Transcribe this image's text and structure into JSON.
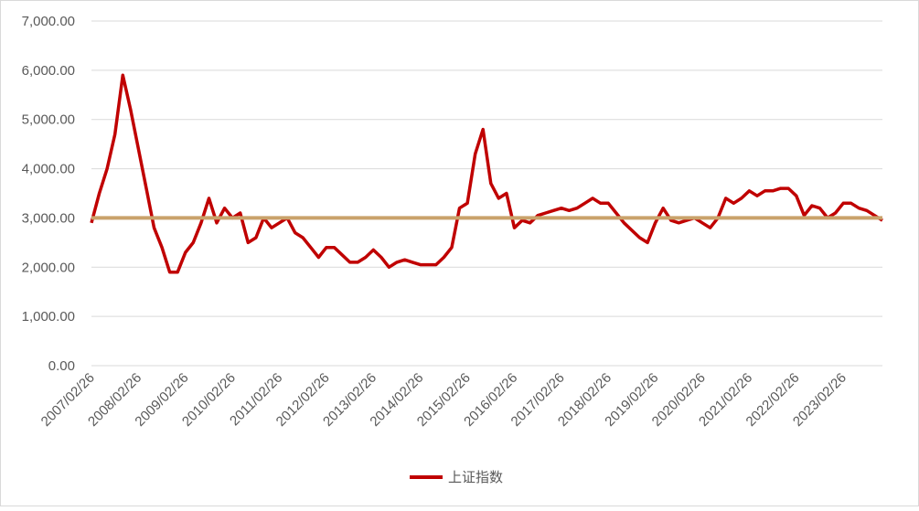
{
  "chart_data": {
    "type": "line",
    "categories": [
      "2007/02/26",
      null,
      null,
      null,
      null,
      null,
      "2008/02/26",
      null,
      null,
      null,
      null,
      null,
      "2009/02/26",
      null,
      null,
      null,
      null,
      null,
      "2010/02/26",
      null,
      null,
      null,
      null,
      null,
      "2011/02/26",
      null,
      null,
      null,
      null,
      null,
      "2012/02/26",
      null,
      null,
      null,
      null,
      null,
      "2013/02/26",
      null,
      null,
      null,
      null,
      null,
      "2014/02/26",
      null,
      null,
      null,
      null,
      null,
      "2015/02/26",
      null,
      null,
      null,
      null,
      null,
      "2016/02/26",
      null,
      null,
      null,
      null,
      null,
      "2017/02/26",
      null,
      null,
      null,
      null,
      null,
      "2018/02/26",
      null,
      null,
      null,
      null,
      null,
      "2019/02/26",
      null,
      null,
      null,
      null,
      null,
      "2020/02/26",
      null,
      null,
      null,
      null,
      null,
      "2021/02/26",
      null,
      null,
      null,
      null,
      null,
      "2022/02/26",
      null,
      null,
      null,
      null,
      null,
      "2023/02/26",
      null,
      null,
      null,
      null,
      null
    ],
    "series": [
      {
        "name": "上证指数",
        "color": "#c00000",
        "values": [
          2900,
          3500,
          4000,
          4700,
          5900,
          5200,
          4400,
          3600,
          2800,
          2400,
          1900,
          1900,
          2300,
          2500,
          2900,
          3400,
          2900,
          3200,
          3000,
          3100,
          2500,
          2600,
          3000,
          2800,
          2900,
          3000,
          2700,
          2600,
          2400,
          2200,
          2400,
          2400,
          2250,
          2100,
          2100,
          2200,
          2350,
          2200,
          2000,
          2100,
          2150,
          2100,
          2050,
          2050,
          2050,
          2200,
          2400,
          3200,
          3300,
          4300,
          4800,
          3700,
          3400,
          3500,
          2800,
          2950,
          2900,
          3050,
          3100,
          3150,
          3200,
          3150,
          3200,
          3300,
          3400,
          3300,
          3300,
          3100,
          2900,
          2750,
          2600,
          2500,
          2900,
          3200,
          2950,
          2900,
          2950,
          3000,
          2900,
          2800,
          3000,
          3400,
          3300,
          3400,
          3550,
          3450,
          3550,
          3550,
          3600,
          3600,
          3450,
          3050,
          3250,
          3200,
          3000,
          3100,
          3300,
          3300,
          3200,
          3150,
          3050,
          2950
        ]
      }
    ],
    "reference_line": {
      "value": 3000,
      "color": "#c9a26b"
    },
    "ylim": [
      0,
      7000
    ],
    "yticks": [
      {
        "value": 0,
        "label": "0.00"
      },
      {
        "value": 1000,
        "label": "1,000.00"
      },
      {
        "value": 2000,
        "label": "2,000.00"
      },
      {
        "value": 3000,
        "label": "3,000.00"
      },
      {
        "value": 4000,
        "label": "4,000.00"
      },
      {
        "value": 5000,
        "label": "5,000.00"
      },
      {
        "value": 6000,
        "label": "6,000.00"
      },
      {
        "value": 7000,
        "label": "7,000.00"
      }
    ],
    "grid": true,
    "legend": "bottom"
  }
}
